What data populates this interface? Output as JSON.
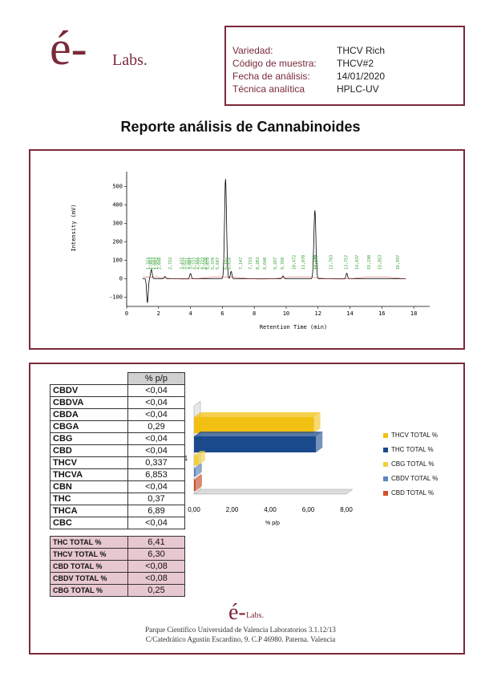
{
  "logo": {
    "e": "é-",
    "labs": "Labs."
  },
  "info": [
    {
      "label": "Variedad:",
      "value": "THCV Rich"
    },
    {
      "label": "Código de muestra:",
      "value": "THCV#2"
    },
    {
      "label": "Fecha de análisis:",
      "value": "14/01/2020"
    },
    {
      "label": "Técnica analítica",
      "value": "HPLC-UV"
    }
  ],
  "title": "Reporte análisis de Cannabinoides",
  "chromatogram": {
    "xlabel": "Retention Time (min)",
    "ylabel": "Intensity (mV)",
    "xticks": [
      "0",
      "2",
      "4",
      "6",
      "8",
      "10",
      "12",
      "14",
      "16",
      "18"
    ],
    "yticks": [
      "500",
      "400",
      "300",
      "200",
      "100",
      "0",
      "-100"
    ],
    "peaks": [
      {
        "rt": 1.3,
        "h": -130
      },
      {
        "rt": 1.55,
        "h": 50
      },
      {
        "rt": 2.4,
        "h": 12
      },
      {
        "rt": 4.0,
        "h": 28
      },
      {
        "rt": 6.2,
        "h": 540
      },
      {
        "rt": 6.55,
        "h": 40
      },
      {
        "rt": 9.8,
        "h": 15
      },
      {
        "rt": 11.8,
        "h": 370
      },
      {
        "rt": 13.8,
        "h": 30
      }
    ],
    "peak_labels": [
      "1,323",
      "1,483",
      "1,683",
      "1,842",
      "2,040",
      "2,722",
      "3,437",
      "3,627",
      "3,841",
      "3,987",
      "4,237",
      "4,480",
      "4,723",
      "4,930",
      "5,079",
      "5,370",
      "5,687",
      "6,187",
      "6,410",
      "7,147",
      "7,733",
      "8,203",
      "8,640",
      "9,287",
      "9,760",
      "10,472",
      "11,070",
      "11,750",
      "11,877",
      "12,783",
      "13,757",
      "14,437",
      "15,190",
      "15,853",
      "16,997"
    ]
  },
  "table": {
    "header": "% p/p",
    "rows": [
      {
        "name": "CBDV",
        "value": "<0,04"
      },
      {
        "name": "CBDVA",
        "value": "<0,04"
      },
      {
        "name": "CBDA",
        "value": "<0,04"
      },
      {
        "name": "CBGA",
        "value": "0,29"
      },
      {
        "name": "CBG",
        "value": "<0,04"
      },
      {
        "name": "CBD",
        "value": "<0,04"
      },
      {
        "name": "THCV",
        "value": "0,337"
      },
      {
        "name": "THCVA",
        "value": "6,853"
      },
      {
        "name": "CBN",
        "value": "<0,04"
      },
      {
        "name": "THC",
        "value": "0,37"
      },
      {
        "name": "THCA",
        "value": "6,89"
      },
      {
        "name": "CBC",
        "value": "<0,04"
      }
    ],
    "totals": [
      {
        "name": "THC TOTAL %",
        "value": "6,41"
      },
      {
        "name": "THCV TOTAL %",
        "value": "6,30"
      },
      {
        "name": "CBD TOTAL %",
        "value": "<0,08"
      },
      {
        "name": "CBDV TOTAL %",
        "value": "<0,08"
      },
      {
        "name": "CBG TOTAL %",
        "value": "0,25"
      }
    ]
  },
  "chart_data": {
    "type": "bar",
    "orientation": "horizontal",
    "categories": [
      "1"
    ],
    "xlabel": "% p/p",
    "xlim": [
      0,
      8
    ],
    "xticks": [
      "0,00",
      "2,00",
      "4,00",
      "6,00",
      "8,00"
    ],
    "series": [
      {
        "name": "THCV TOTAL %",
        "values": [
          6.3
        ],
        "color": "#f2c012"
      },
      {
        "name": "THC TOTAL %",
        "values": [
          6.41
        ],
        "color": "#1b4a8c"
      },
      {
        "name": "CBG TOTAL %",
        "values": [
          0.25
        ],
        "color": "#f0d040"
      },
      {
        "name": "CBDV TOTAL %",
        "values": [
          0.08
        ],
        "color": "#5b86c0"
      },
      {
        "name": "CBD TOTAL %",
        "values": [
          0.08
        ],
        "color": "#d0502a"
      }
    ]
  },
  "footer": {
    "line1": "Parque Científico Universidad de Valencia  Laboratorios 3.1.12/13",
    "line2": "C/Catedrático Agustín Escardino, 9. C.P 46980. Paterna. Valencia"
  }
}
